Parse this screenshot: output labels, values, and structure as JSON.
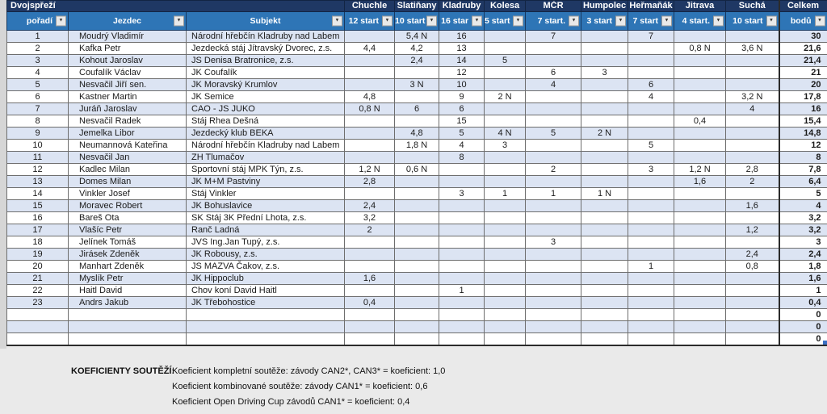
{
  "colors": {
    "header_navy": "#1f3864",
    "header_blue": "#2e75b6",
    "band_blue": "#dce4f3",
    "selection_blue": "#3a6fc4"
  },
  "header": {
    "group_title": "Dvojspřeží",
    "rank_label": "pořadí",
    "rider_label": "Jezdec",
    "subject_label": "Subjekt",
    "total_label": "Celkem",
    "total_sub_label": "bodů",
    "filter_icon": "▼",
    "sort_filter_icon": "▼",
    "events": [
      {
        "name": "Chuchle",
        "starts": "12 start"
      },
      {
        "name": "Slatiňany",
        "starts": "10 start"
      },
      {
        "name": "Kladruby",
        "starts": "16 star"
      },
      {
        "name": "Kolesa",
        "starts": "5 start"
      },
      {
        "name": "MČR",
        "starts": "7 start."
      },
      {
        "name": "Humpolec",
        "starts": "3 start"
      },
      {
        "name": "Heřmaňák",
        "starts": "7 start"
      },
      {
        "name": "Jitrava",
        "starts": "4 start."
      },
      {
        "name": "Suchá",
        "starts": "10 start"
      }
    ]
  },
  "rows": [
    [
      "1",
      "Moudrý Vladimír",
      "Národní hřebčín Kladruby nad Labem",
      "",
      "5,4 N",
      "16",
      "",
      "7",
      "",
      "7",
      "",
      "",
      "30"
    ],
    [
      "2",
      "Kafka Petr",
      "Jezdecká stáj Jítravský Dvorec, z.s.",
      "4,4",
      "4,2",
      "13",
      "",
      "",
      "",
      "",
      "0,8 N",
      "3,6 N",
      "21,6"
    ],
    [
      "3",
      "Kohout Jaroslav",
      "JS Denisa Bratronice, z.s.",
      "",
      "2,4",
      "14",
      "5",
      "",
      "",
      "",
      "",
      "",
      "21,4"
    ],
    [
      "4",
      "Coufalík Václav",
      "JK Coufalík",
      "",
      "",
      "12",
      "",
      "6",
      "3",
      "",
      "",
      "",
      "21"
    ],
    [
      "5",
      "Nesvačil Jiří sen.",
      "JK Moravský Krumlov",
      "",
      "3 N",
      "10",
      "",
      "4",
      "",
      "6",
      "",
      "",
      "20"
    ],
    [
      "6",
      "Kastner Martin",
      "JK Semice",
      "4,8",
      "",
      "9",
      "2 N",
      "",
      "",
      "4",
      "",
      "3,2 N",
      "17,8"
    ],
    [
      "7",
      "Juráň Jaroslav",
      "CAO - JS JUKO",
      "0,8 N",
      "6",
      "6",
      "",
      "",
      "",
      "",
      "",
      "4",
      "16"
    ],
    [
      "8",
      "Nesvačil Radek",
      "Stáj Rhea Dešná",
      "",
      "",
      "15",
      "",
      "",
      "",
      "",
      "0,4",
      "",
      "15,4"
    ],
    [
      "9",
      "Jemelka Libor",
      "Jezdecký klub BEKA",
      "",
      "4,8",
      "5",
      "4 N",
      "5",
      "2 N",
      "",
      "",
      "",
      "14,8"
    ],
    [
      "10",
      "Neumannová Kateřina",
      "Národní hřebčín Kladruby nad Labem",
      "",
      "1,8 N",
      "4",
      "3",
      "",
      "",
      "5",
      "",
      "",
      "12"
    ],
    [
      "11",
      "Nesvačil Jan",
      "ZH Tlumačov",
      "",
      "",
      "8",
      "",
      "",
      "",
      "",
      "",
      "",
      "8"
    ],
    [
      "12",
      "Kadlec Milan",
      "Sportovní stáj MPK Týn, z.s.",
      "1,2 N",
      "0,6 N",
      "",
      "",
      "2",
      "",
      "3",
      "1,2 N",
      "2,8",
      "7,8"
    ],
    [
      "13",
      "Domes Milan",
      "JK M+M Pastviny",
      "2,8",
      "",
      "",
      "",
      "",
      "",
      "",
      "1,6",
      "2",
      "6,4"
    ],
    [
      "14",
      "Vinkler Josef",
      "Stáj Vinkler",
      "",
      "",
      "3",
      "1",
      "1",
      "1 N",
      "",
      "",
      "",
      "5"
    ],
    [
      "15",
      "Moravec Robert",
      "JK Bohuslavice",
      "2,4",
      "",
      "",
      "",
      "",
      "",
      "",
      "",
      "1,6",
      "4"
    ],
    [
      "16",
      "Bareš Ota",
      "SK Stáj 3K Přední Lhota, z.s.",
      "3,2",
      "",
      "",
      "",
      "",
      "",
      "",
      "",
      "",
      "3,2"
    ],
    [
      "17",
      "Vlašíc Petr",
      "Ranč Ladná",
      "2",
      "",
      "",
      "",
      "",
      "",
      "",
      "",
      "1,2",
      "3,2"
    ],
    [
      "18",
      "Jelínek Tomáš",
      "JVS Ing.Jan Tupý, z.s.",
      "",
      "",
      "",
      "",
      "3",
      "",
      "",
      "",
      "",
      "3"
    ],
    [
      "19",
      "Jirásek Zdeněk",
      "JK Robousy, z.s.",
      "",
      "",
      "",
      "",
      "",
      "",
      "",
      "",
      "2,4",
      "2,4"
    ],
    [
      "20",
      "Manhart Zdeněk",
      "JS MAZVA Čakov, z.s.",
      "",
      "",
      "",
      "",
      "",
      "",
      "1",
      "",
      "0,8",
      "1,8"
    ],
    [
      "21",
      "Myslík Petr",
      "JK Hippoclub",
      "1,6",
      "",
      "",
      "",
      "",
      "",
      "",
      "",
      "",
      "1,6"
    ],
    [
      "22",
      "Haitl David",
      "Chov koní David Haitl",
      "",
      "",
      "1",
      "",
      "",
      "",
      "",
      "",
      "",
      "1"
    ],
    [
      "23",
      "Andrs Jakub",
      "JK Třebohostice",
      "0,4",
      "",
      "",
      "",
      "",
      "",
      "",
      "",
      "",
      "0,4"
    ],
    [
      "",
      "",
      "",
      "",
      "",
      "",
      "",
      "",
      "",
      "",
      "",
      "",
      "0"
    ],
    [
      "",
      "",
      "",
      "",
      "",
      "",
      "",
      "",
      "",
      "",
      "",
      "",
      "0"
    ],
    [
      "",
      "",
      "",
      "",
      "",
      "",
      "",
      "",
      "",
      "",
      "",
      "",
      "0"
    ]
  ],
  "footer": {
    "label": "KOEFICIENTY SOUTĚŽÍ:",
    "lines": [
      "Koeficient kompletní soutěže: závody CAN2*, CAN3* = koeficient: 1,0",
      "Koeficient kombinované soutěže: závody CAN1* = koeficient: 0,6",
      "Koeficient Open Driving Cup závodů CAN1* = koeficient: 0,4"
    ]
  }
}
